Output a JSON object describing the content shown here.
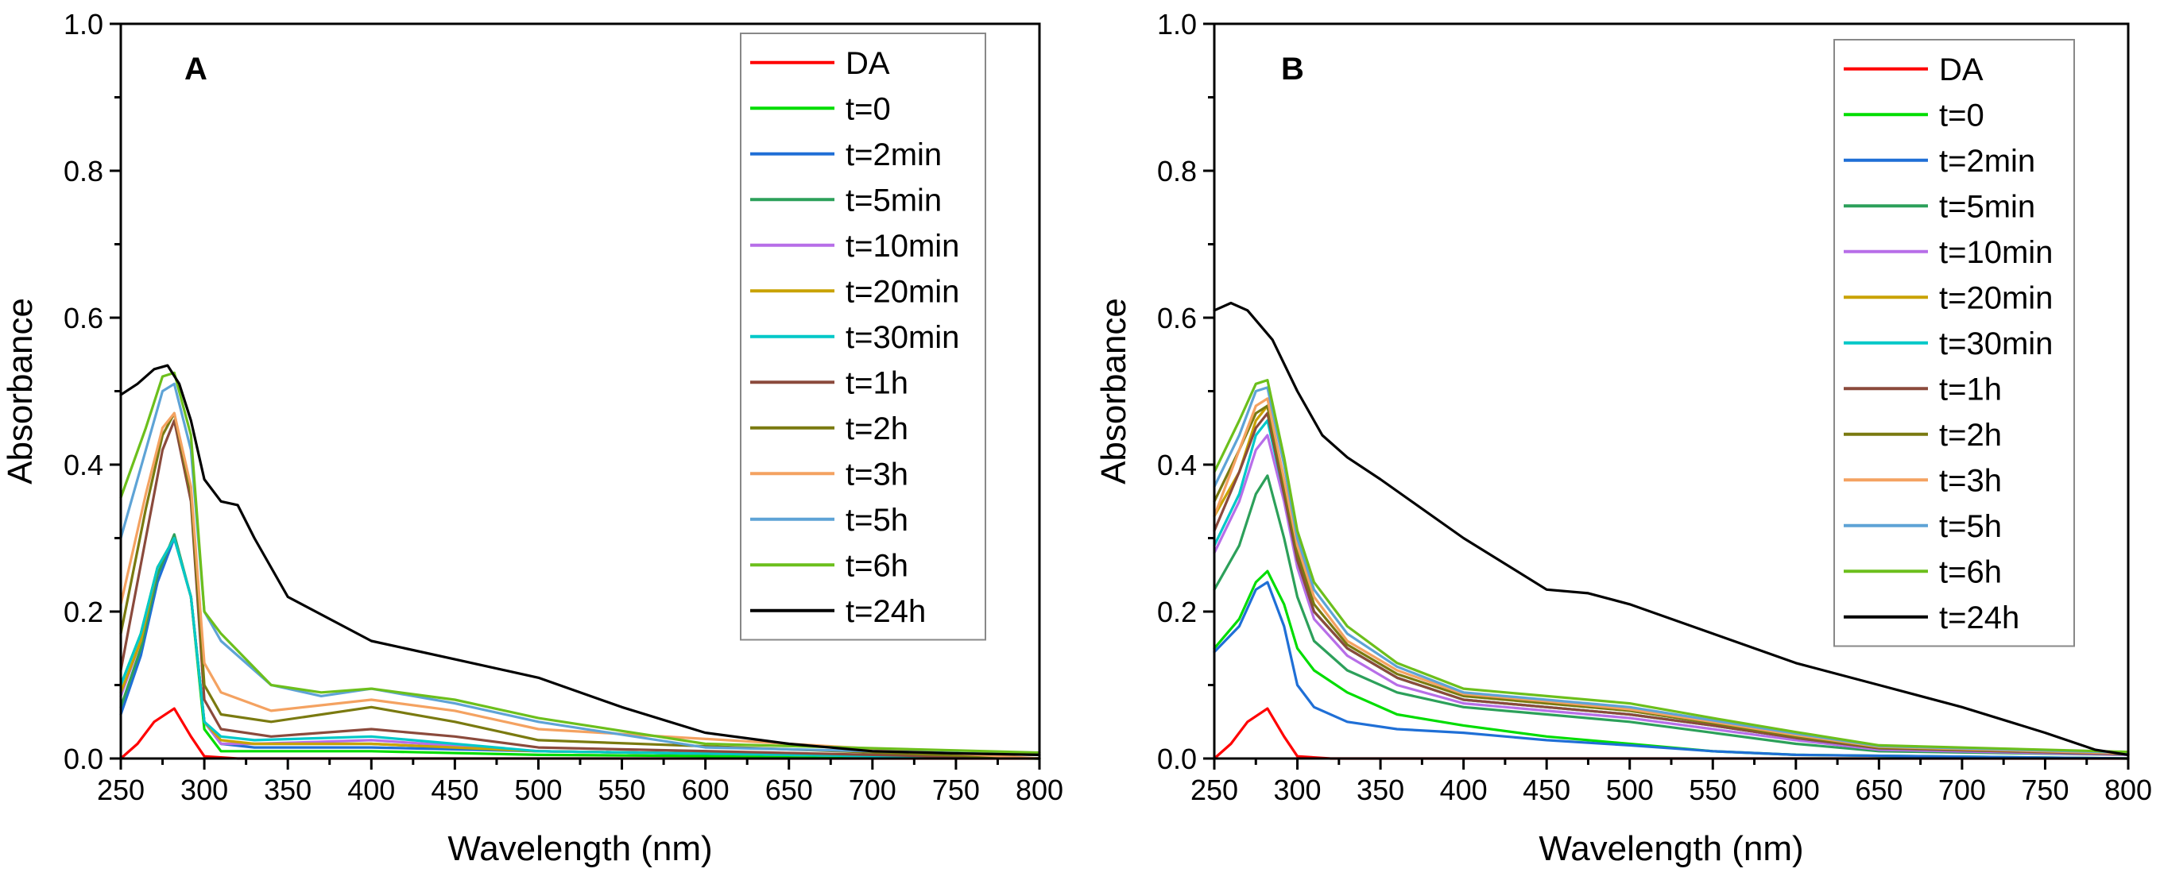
{
  "chart_data": [
    {
      "type": "line",
      "panel_label": "A",
      "xlabel": "Wavelength (nm)",
      "ylabel": "Absorbance",
      "xlim": [
        250,
        800
      ],
      "ylim": [
        0.0,
        1.0
      ],
      "xticks": [
        250,
        300,
        350,
        400,
        450,
        500,
        550,
        600,
        650,
        700,
        750,
        800
      ],
      "xtick_labels": [
        "250",
        "300",
        "350",
        "400",
        "450",
        "500",
        "550",
        "600",
        "650",
        "700",
        "750",
        "800"
      ],
      "yticks": [
        0.0,
        0.2,
        0.4,
        0.6,
        0.8,
        1.0
      ],
      "ytick_labels": [
        "0.0",
        "0.2",
        "0.4",
        "0.6",
        "0.8",
        "1.0"
      ],
      "legend_position": "top-right",
      "series": [
        {
          "name": "DA",
          "color": "#ff0000",
          "x": [
            250,
            260,
            270,
            282,
            292,
            300,
            320,
            400,
            800
          ],
          "y": [
            0.0,
            0.02,
            0.05,
            0.068,
            0.03,
            0.003,
            0.0,
            0.0,
            0.0
          ]
        },
        {
          "name": "t=0",
          "color": "#00dd00",
          "x": [
            250,
            262,
            272,
            282,
            292,
            300,
            310,
            330,
            400,
            500,
            800
          ],
          "y": [
            0.1,
            0.17,
            0.26,
            0.3,
            0.22,
            0.04,
            0.01,
            0.01,
            0.01,
            0.005,
            0.0
          ]
        },
        {
          "name": "t=2min",
          "color": "#1f6fd6",
          "x": [
            250,
            262,
            272,
            282,
            292,
            300,
            310,
            330,
            400,
            500,
            800
          ],
          "y": [
            0.06,
            0.14,
            0.24,
            0.3,
            0.22,
            0.05,
            0.02,
            0.015,
            0.015,
            0.01,
            0.0
          ]
        },
        {
          "name": "t=5min",
          "color": "#2ca05a",
          "x": [
            250,
            262,
            272,
            282,
            292,
            300,
            310,
            330,
            400,
            500,
            800
          ],
          "y": [
            0.07,
            0.15,
            0.25,
            0.305,
            0.22,
            0.05,
            0.02,
            0.02,
            0.02,
            0.01,
            0.0
          ]
        },
        {
          "name": "t=10min",
          "color": "#b76ee8",
          "x": [
            250,
            262,
            272,
            282,
            292,
            300,
            310,
            330,
            400,
            500,
            800
          ],
          "y": [
            0.085,
            0.16,
            0.26,
            0.3,
            0.22,
            0.05,
            0.02,
            0.02,
            0.025,
            0.01,
            0.0
          ]
        },
        {
          "name": "t=20min",
          "color": "#c9a200",
          "x": [
            250,
            262,
            272,
            282,
            292,
            300,
            310,
            330,
            400,
            500,
            800
          ],
          "y": [
            0.09,
            0.16,
            0.26,
            0.3,
            0.22,
            0.05,
            0.025,
            0.02,
            0.02,
            0.01,
            0.0
          ]
        },
        {
          "name": "t=30min",
          "color": "#00c8c8",
          "x": [
            250,
            262,
            272,
            282,
            292,
            300,
            310,
            330,
            400,
            500,
            800
          ],
          "y": [
            0.1,
            0.17,
            0.26,
            0.3,
            0.22,
            0.05,
            0.03,
            0.025,
            0.03,
            0.01,
            0.0
          ]
        },
        {
          "name": "t=1h",
          "color": "#8b4a3c",
          "x": [
            250,
            265,
            275,
            282,
            292,
            300,
            310,
            340,
            400,
            450,
            500,
            800
          ],
          "y": [
            0.12,
            0.3,
            0.42,
            0.46,
            0.35,
            0.08,
            0.04,
            0.03,
            0.04,
            0.03,
            0.015,
            0.0
          ]
        },
        {
          "name": "t=2h",
          "color": "#7a7a10",
          "x": [
            250,
            265,
            275,
            282,
            292,
            300,
            310,
            340,
            400,
            450,
            500,
            800
          ],
          "y": [
            0.17,
            0.34,
            0.44,
            0.47,
            0.36,
            0.1,
            0.06,
            0.05,
            0.07,
            0.05,
            0.025,
            0.0
          ]
        },
        {
          "name": "t=3h",
          "color": "#f4a261",
          "x": [
            250,
            265,
            275,
            282,
            292,
            300,
            310,
            340,
            400,
            450,
            500,
            800
          ],
          "y": [
            0.21,
            0.36,
            0.45,
            0.47,
            0.37,
            0.13,
            0.09,
            0.065,
            0.08,
            0.065,
            0.04,
            0.0
          ]
        },
        {
          "name": "t=5h",
          "color": "#5ea3d6",
          "x": [
            250,
            265,
            275,
            282,
            292,
            300,
            310,
            340,
            370,
            400,
            450,
            500,
            600,
            800
          ],
          "y": [
            0.3,
            0.42,
            0.5,
            0.51,
            0.42,
            0.2,
            0.16,
            0.1,
            0.085,
            0.095,
            0.075,
            0.05,
            0.015,
            0.005
          ]
        },
        {
          "name": "t=6h",
          "color": "#6cbf1c",
          "x": [
            250,
            265,
            275,
            282,
            292,
            300,
            310,
            340,
            370,
            400,
            450,
            500,
            600,
            800
          ],
          "y": [
            0.355,
            0.45,
            0.52,
            0.525,
            0.44,
            0.2,
            0.17,
            0.1,
            0.09,
            0.095,
            0.08,
            0.055,
            0.02,
            0.008
          ]
        },
        {
          "name": "t=24h",
          "color": "#000000",
          "x": [
            250,
            260,
            270,
            278,
            285,
            292,
            300,
            310,
            320,
            330,
            350,
            400,
            450,
            500,
            550,
            600,
            650,
            700,
            750,
            800
          ],
          "y": [
            0.495,
            0.51,
            0.53,
            0.535,
            0.51,
            0.46,
            0.38,
            0.35,
            0.345,
            0.3,
            0.22,
            0.16,
            0.135,
            0.11,
            0.07,
            0.035,
            0.02,
            0.01,
            0.007,
            0.005
          ]
        }
      ]
    },
    {
      "type": "line",
      "panel_label": "B",
      "xlabel": "Wavelength (nm)",
      "ylabel": "Absorbance",
      "xlim": [
        250,
        800
      ],
      "ylim": [
        0.0,
        1.0
      ],
      "xticks": [
        250,
        300,
        350,
        400,
        450,
        500,
        550,
        600,
        650,
        700,
        750,
        800
      ],
      "xtick_labels": [
        "250",
        "300",
        "350",
        "400",
        "450",
        "500",
        "550",
        "600",
        "650",
        "700",
        "750",
        "800"
      ],
      "yticks": [
        0.0,
        0.2,
        0.4,
        0.6,
        0.8,
        1.0
      ],
      "ytick_labels": [
        "0.0",
        "0.2",
        "0.4",
        "0.6",
        "0.8",
        "1.0"
      ],
      "legend_position": "top-right",
      "series": [
        {
          "name": "DA",
          "color": "#ff0000",
          "x": [
            250,
            260,
            270,
            282,
            292,
            300,
            320,
            400,
            800
          ],
          "y": [
            0.0,
            0.02,
            0.05,
            0.068,
            0.03,
            0.003,
            0.0,
            0.0,
            0.0
          ]
        },
        {
          "name": "t=0",
          "color": "#00dd00",
          "x": [
            250,
            265,
            275,
            282,
            292,
            300,
            310,
            330,
            360,
            400,
            450,
            500,
            550,
            600,
            800
          ],
          "y": [
            0.15,
            0.19,
            0.24,
            0.255,
            0.21,
            0.15,
            0.12,
            0.09,
            0.06,
            0.045,
            0.03,
            0.02,
            0.01,
            0.005,
            0.0
          ]
        },
        {
          "name": "t=2min",
          "color": "#1f6fd6",
          "x": [
            250,
            265,
            275,
            282,
            292,
            300,
            310,
            330,
            360,
            400,
            450,
            500,
            550,
            600,
            800
          ],
          "y": [
            0.145,
            0.18,
            0.23,
            0.24,
            0.18,
            0.1,
            0.07,
            0.05,
            0.04,
            0.035,
            0.025,
            0.018,
            0.01,
            0.005,
            0.0
          ]
        },
        {
          "name": "t=5min",
          "color": "#2ca05a",
          "x": [
            250,
            265,
            275,
            282,
            292,
            300,
            310,
            330,
            360,
            400,
            450,
            500,
            550,
            600,
            650,
            800
          ],
          "y": [
            0.23,
            0.29,
            0.36,
            0.385,
            0.3,
            0.22,
            0.16,
            0.12,
            0.09,
            0.07,
            0.06,
            0.05,
            0.035,
            0.02,
            0.01,
            0.005
          ]
        },
        {
          "name": "t=10min",
          "color": "#b76ee8",
          "x": [
            250,
            265,
            275,
            282,
            292,
            300,
            310,
            330,
            360,
            400,
            450,
            500,
            550,
            600,
            650,
            800
          ],
          "y": [
            0.28,
            0.35,
            0.42,
            0.44,
            0.35,
            0.26,
            0.19,
            0.14,
            0.1,
            0.075,
            0.065,
            0.055,
            0.04,
            0.025,
            0.012,
            0.005
          ]
        },
        {
          "name": "t=20min",
          "color": "#c9a200",
          "x": [
            250,
            265,
            275,
            282,
            292,
            300,
            310,
            330,
            360,
            400,
            450,
            500,
            550,
            600,
            650,
            800
          ],
          "y": [
            0.33,
            0.39,
            0.46,
            0.48,
            0.37,
            0.27,
            0.2,
            0.15,
            0.11,
            0.08,
            0.07,
            0.06,
            0.045,
            0.028,
            0.014,
            0.006
          ]
        },
        {
          "name": "t=30min",
          "color": "#00c8c8",
          "x": [
            250,
            265,
            275,
            282,
            292,
            300,
            310,
            330,
            360,
            400,
            450,
            500,
            550,
            600,
            650,
            800
          ],
          "y": [
            0.29,
            0.36,
            0.44,
            0.46,
            0.36,
            0.27,
            0.2,
            0.15,
            0.11,
            0.08,
            0.07,
            0.06,
            0.045,
            0.028,
            0.014,
            0.006
          ]
        },
        {
          "name": "t=1h",
          "color": "#8b4a3c",
          "x": [
            250,
            265,
            275,
            282,
            292,
            300,
            310,
            330,
            360,
            400,
            450,
            500,
            550,
            600,
            650,
            800
          ],
          "y": [
            0.31,
            0.39,
            0.45,
            0.47,
            0.36,
            0.27,
            0.2,
            0.15,
            0.11,
            0.08,
            0.07,
            0.06,
            0.045,
            0.028,
            0.014,
            0.006
          ]
        },
        {
          "name": "t=2h",
          "color": "#7a7a10",
          "x": [
            250,
            265,
            275,
            282,
            292,
            300,
            310,
            330,
            360,
            400,
            450,
            500,
            550,
            600,
            650,
            800
          ],
          "y": [
            0.35,
            0.42,
            0.47,
            0.48,
            0.37,
            0.28,
            0.21,
            0.155,
            0.115,
            0.085,
            0.075,
            0.065,
            0.048,
            0.03,
            0.015,
            0.007
          ]
        },
        {
          "name": "t=3h",
          "color": "#f4a261",
          "x": [
            250,
            265,
            275,
            282,
            292,
            300,
            310,
            330,
            360,
            400,
            450,
            500,
            550,
            600,
            650,
            800
          ],
          "y": [
            0.33,
            0.42,
            0.48,
            0.49,
            0.38,
            0.29,
            0.22,
            0.16,
            0.12,
            0.088,
            0.078,
            0.067,
            0.05,
            0.032,
            0.016,
            0.007
          ]
        },
        {
          "name": "t=5h",
          "color": "#5ea3d6",
          "x": [
            250,
            265,
            275,
            282,
            292,
            300,
            310,
            330,
            360,
            400,
            450,
            500,
            550,
            600,
            650,
            800
          ],
          "y": [
            0.37,
            0.44,
            0.5,
            0.505,
            0.4,
            0.3,
            0.23,
            0.17,
            0.125,
            0.09,
            0.08,
            0.07,
            0.052,
            0.034,
            0.017,
            0.008
          ]
        },
        {
          "name": "t=6h",
          "color": "#6cbf1c",
          "x": [
            250,
            265,
            275,
            282,
            292,
            300,
            310,
            330,
            360,
            400,
            450,
            500,
            550,
            600,
            650,
            800
          ],
          "y": [
            0.39,
            0.46,
            0.51,
            0.515,
            0.41,
            0.31,
            0.24,
            0.18,
            0.13,
            0.095,
            0.085,
            0.075,
            0.055,
            0.036,
            0.018,
            0.009
          ]
        },
        {
          "name": "t=24h",
          "color": "#000000",
          "x": [
            250,
            260,
            270,
            285,
            300,
            315,
            330,
            350,
            400,
            450,
            475,
            500,
            550,
            600,
            650,
            700,
            750,
            780,
            800
          ],
          "y": [
            0.61,
            0.62,
            0.61,
            0.57,
            0.5,
            0.44,
            0.41,
            0.38,
            0.3,
            0.23,
            0.225,
            0.21,
            0.17,
            0.13,
            0.1,
            0.07,
            0.035,
            0.012,
            0.005
          ]
        }
      ]
    }
  ]
}
